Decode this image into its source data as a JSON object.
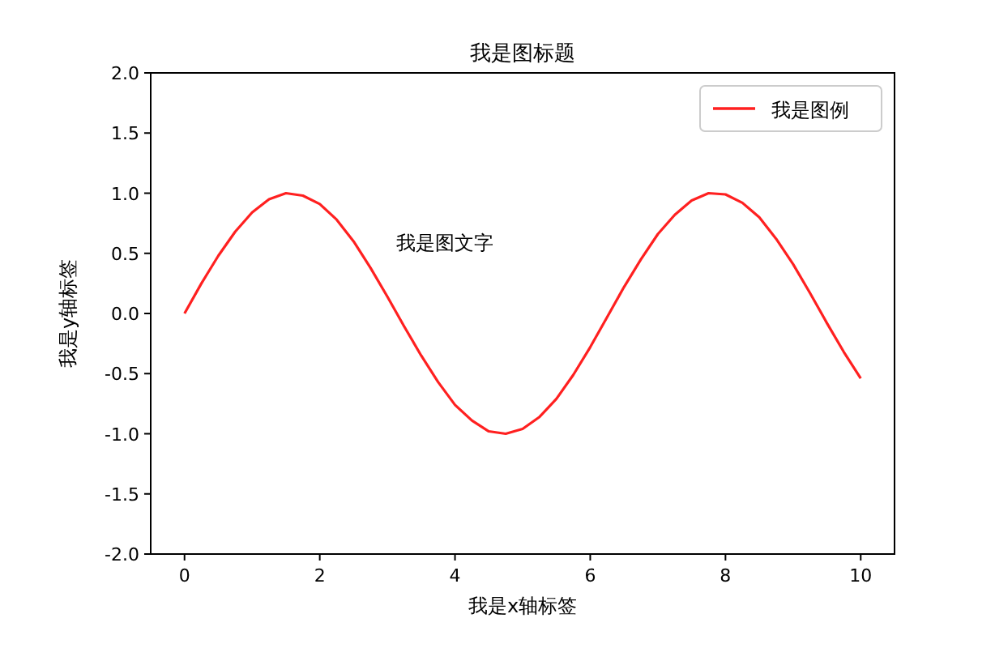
{
  "chart_data": {
    "type": "line",
    "title": "我是图标题",
    "xlabel": "我是x轴标签",
    "ylabel": "我是y轴标签",
    "annotations": [
      "我是图文字"
    ],
    "x": [
      0,
      0.25,
      0.5,
      0.75,
      1,
      1.25,
      1.5,
      1.75,
      2,
      2.25,
      2.5,
      2.75,
      3,
      3.25,
      3.5,
      3.75,
      4,
      4.25,
      4.5,
      4.75,
      5,
      5.25,
      5.5,
      5.75,
      6,
      6.25,
      6.5,
      6.75,
      7,
      7.25,
      7.5,
      7.75,
      8,
      8.25,
      8.5,
      8.75,
      9,
      9.25,
      9.5,
      9.75,
      10
    ],
    "series": [
      {
        "name": "我是图例",
        "color": "#ff2020",
        "values": [
          0,
          0.25,
          0.48,
          0.68,
          0.84,
          0.95,
          1.0,
          0.98,
          0.91,
          0.78,
          0.6,
          0.38,
          0.14,
          -0.11,
          -0.35,
          -0.57,
          -0.76,
          -0.89,
          -0.98,
          -1.0,
          -0.96,
          -0.86,
          -0.71,
          -0.51,
          -0.28,
          -0.03,
          0.22,
          0.45,
          0.66,
          0.82,
          0.94,
          1.0,
          0.99,
          0.92,
          0.8,
          0.62,
          0.41,
          0.17,
          -0.08,
          -0.32,
          -0.54
        ]
      }
    ],
    "xlim": [
      -0.5,
      10.5
    ],
    "ylim": [
      -2,
      2
    ],
    "xticks": [
      0,
      2,
      4,
      6,
      8,
      10
    ],
    "yticks": [
      {
        "value": -2,
        "label": "-2.0"
      },
      {
        "value": -1.5,
        "label": "-1.5"
      },
      {
        "value": -1,
        "label": "-1.0"
      },
      {
        "value": -0.5,
        "label": "-0.5"
      },
      {
        "value": 0,
        "label": "0.0"
      },
      {
        "value": 0.5,
        "label": "0.5"
      },
      {
        "value": 1,
        "label": "1.0"
      },
      {
        "value": 1.5,
        "label": "1.5"
      },
      {
        "value": 2,
        "label": "2.0"
      }
    ],
    "legend": "top right",
    "grid": false,
    "marker": "none",
    "line_style": "solid"
  }
}
